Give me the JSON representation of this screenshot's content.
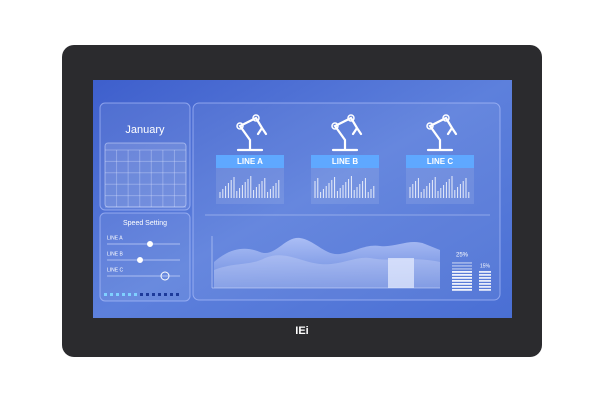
{
  "calendar": {
    "month": "January"
  },
  "speed_setting": {
    "title": "Speed Setting",
    "sliders": [
      "LINE A",
      "LINE B",
      "LINE C"
    ]
  },
  "lines": [
    "LINE A",
    "LINE B",
    "LINE C"
  ],
  "gauges": [
    "25%",
    "15%"
  ],
  "logo": "IEi"
}
